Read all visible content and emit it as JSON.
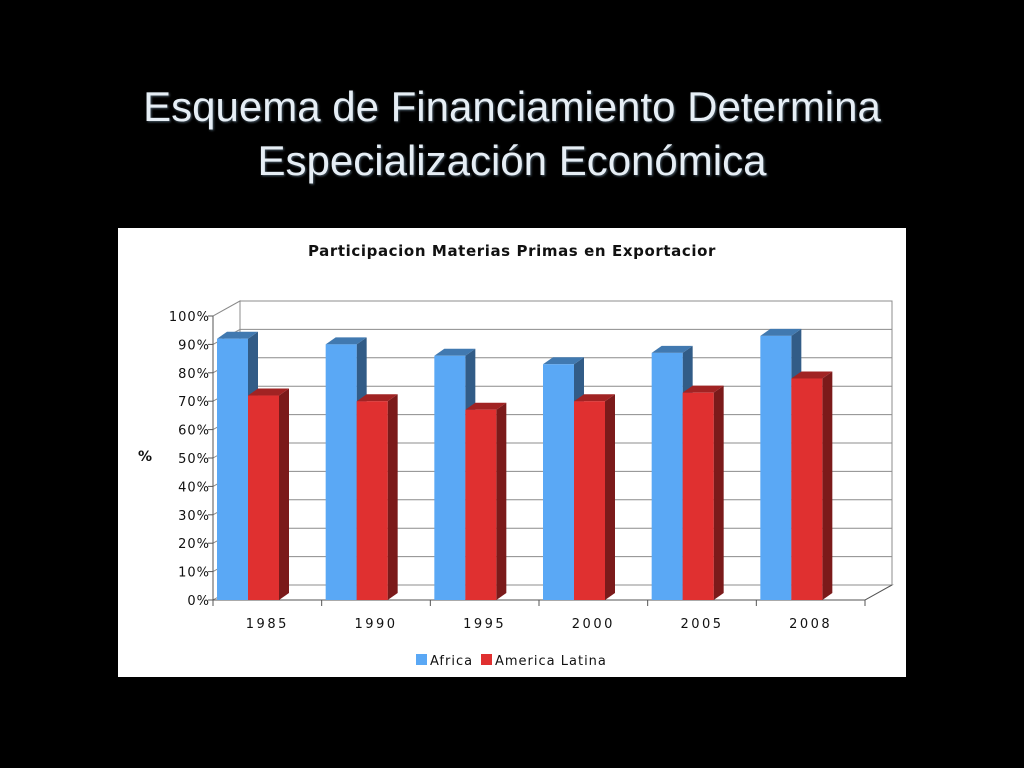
{
  "slide": {
    "title_line1": "Esquema de Financiamiento Determina",
    "title_line2": "Especialización Económica"
  },
  "chart_data": {
    "type": "bar",
    "title": "Participacion Materias Primas en Exportacior",
    "ylabel": "%",
    "xlabel": "",
    "categories": [
      "1985",
      "1990",
      "1995",
      "2000",
      "2005",
      "2008"
    ],
    "series": [
      {
        "name": "Africa",
        "color": "#5aa8f5",
        "values": [
          92,
          90,
          86,
          83,
          87,
          93
        ]
      },
      {
        "name": "America Latina",
        "color": "#e03030",
        "values": [
          72,
          70,
          67,
          70,
          73,
          78
        ]
      }
    ],
    "ylim": [
      0,
      100
    ],
    "yticks": [
      "0%",
      "10%",
      "20%",
      "30%",
      "40%",
      "50%",
      "60%",
      "70%",
      "80%",
      "90%",
      "100%"
    ],
    "grid": true,
    "legend": "bottom-center"
  }
}
